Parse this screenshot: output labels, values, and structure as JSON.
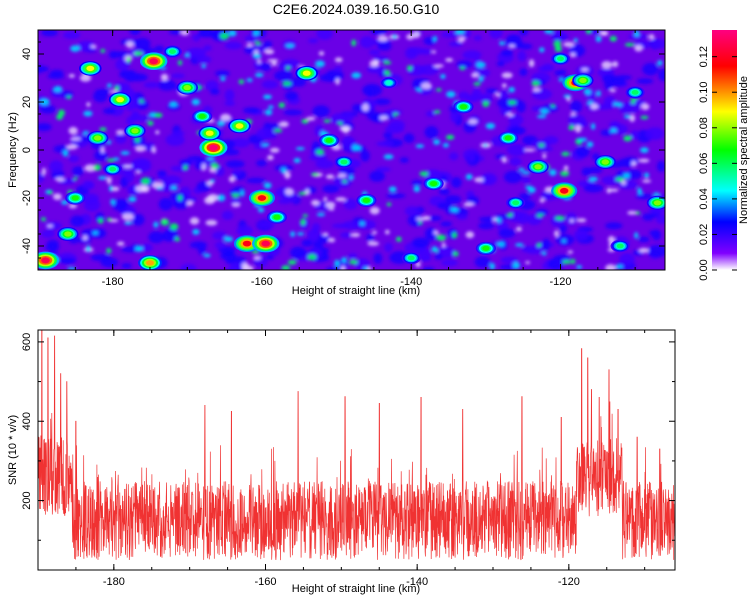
{
  "chart_data": [
    {
      "type": "heatmap",
      "title": "C2E6.2024.039.16.50.G10",
      "xlabel": "Height of straight line (km)",
      "ylabel": "Frequency (Hz)",
      "xlim": [
        -190,
        -106
      ],
      "ylim": [
        -50,
        50
      ],
      "xticks": [
        -180,
        -160,
        -140,
        -120
      ],
      "yticks": [
        -40,
        -20,
        0,
        20,
        40
      ],
      "colorbar": {
        "label": "Normalized spectral amplitude",
        "range": [
          0,
          0.135
        ],
        "ticks": [
          "0.00",
          "0.02",
          "0.04",
          "0.06",
          "0.08",
          "0.10",
          "0.12"
        ],
        "colors": [
          "#ffffff",
          "#8000ff",
          "#0000ff",
          "#00ffff",
          "#00ff00",
          "#ffff00",
          "#ff0000",
          "#ff0080"
        ]
      },
      "blobs": [
        {
          "x": -166.5,
          "y": 1,
          "v": 0.135
        },
        {
          "x": -174.5,
          "y": 37,
          "v": 0.13
        },
        {
          "x": -172,
          "y": 41,
          "v": 0.06
        },
        {
          "x": -177,
          "y": 8,
          "v": 0.08
        },
        {
          "x": -179,
          "y": 21,
          "v": 0.09
        },
        {
          "x": -183,
          "y": 34,
          "v": 0.09
        },
        {
          "x": -182,
          "y": 5,
          "v": 0.08
        },
        {
          "x": -170,
          "y": 26,
          "v": 0.08
        },
        {
          "x": -168,
          "y": 14,
          "v": 0.07
        },
        {
          "x": -167,
          "y": 7,
          "v": 0.09
        },
        {
          "x": -163,
          "y": 10,
          "v": 0.09
        },
        {
          "x": -154,
          "y": 32,
          "v": 0.09
        },
        {
          "x": -151,
          "y": 4,
          "v": 0.07
        },
        {
          "x": -160,
          "y": -20,
          "v": 0.12
        },
        {
          "x": -162,
          "y": -39,
          "v": 0.12
        },
        {
          "x": -159.5,
          "y": -39,
          "v": 0.13
        },
        {
          "x": -158,
          "y": -28,
          "v": 0.07
        },
        {
          "x": -175,
          "y": -47,
          "v": 0.1
        },
        {
          "x": -189,
          "y": -46,
          "v": 0.13
        },
        {
          "x": -186,
          "y": -35,
          "v": 0.08
        },
        {
          "x": -185,
          "y": -20,
          "v": 0.07
        },
        {
          "x": -180,
          "y": -8,
          "v": 0.06
        },
        {
          "x": -146,
          "y": -21,
          "v": 0.07
        },
        {
          "x": -140,
          "y": -45,
          "v": 0.06
        },
        {
          "x": -137,
          "y": -14,
          "v": 0.07
        },
        {
          "x": -133,
          "y": 18,
          "v": 0.07
        },
        {
          "x": -130,
          "y": -41,
          "v": 0.07
        },
        {
          "x": -127,
          "y": 5,
          "v": 0.07
        },
        {
          "x": -126,
          "y": -22,
          "v": 0.06
        },
        {
          "x": -123,
          "y": -7,
          "v": 0.08
        },
        {
          "x": -119.5,
          "y": -17,
          "v": 0.12
        },
        {
          "x": -118,
          "y": 28,
          "v": 0.12
        },
        {
          "x": -117,
          "y": 29,
          "v": 0.08
        },
        {
          "x": -114,
          "y": -5,
          "v": 0.08
        },
        {
          "x": -110,
          "y": 24,
          "v": 0.06
        },
        {
          "x": -107,
          "y": -22,
          "v": 0.08
        },
        {
          "x": -112,
          "y": -40,
          "v": 0.06
        },
        {
          "x": -120,
          "y": 38,
          "v": 0.06
        },
        {
          "x": -143,
          "y": 28,
          "v": 0.05
        },
        {
          "x": -149,
          "y": -5,
          "v": 0.06
        }
      ]
    },
    {
      "type": "line",
      "xlabel": "Height of straight line (km)",
      "ylabel": "SNR (10 * v/v)",
      "xlim": [
        -190,
        -106
      ],
      "ylim": [
        25,
        630
      ],
      "xticks": [
        -180,
        -160,
        -140,
        -120
      ],
      "yticks": [
        200,
        400,
        600
      ],
      "color": "#f03232",
      "samples": 2400,
      "baseline": 150,
      "peaks": [
        {
          "x": -189.5,
          "y": 630
        },
        {
          "x": -188.7,
          "y": 610
        },
        {
          "x": -187.8,
          "y": 615
        },
        {
          "x": -187,
          "y": 520
        },
        {
          "x": -186.2,
          "y": 500
        },
        {
          "x": -185,
          "y": 400
        },
        {
          "x": -168,
          "y": 440
        },
        {
          "x": -164.5,
          "y": 425
        },
        {
          "x": -155.7,
          "y": 475
        },
        {
          "x": -149.5,
          "y": 462
        },
        {
          "x": -145,
          "y": 445
        },
        {
          "x": -139.5,
          "y": 460
        },
        {
          "x": -134,
          "y": 430
        },
        {
          "x": -126.2,
          "y": 462
        },
        {
          "x": -121,
          "y": 410
        },
        {
          "x": -118.3,
          "y": 583
        },
        {
          "x": -117.5,
          "y": 560
        },
        {
          "x": -117,
          "y": 480
        },
        {
          "x": -116,
          "y": 460
        },
        {
          "x": -114.7,
          "y": 530
        },
        {
          "x": -113.5,
          "y": 430
        },
        {
          "x": -111,
          "y": 360
        },
        {
          "x": -108,
          "y": 330
        }
      ],
      "elevated_regions": [
        {
          "from": -190,
          "to": -185.5,
          "add": 110
        },
        {
          "from": -119,
          "to": -113,
          "add": 110
        }
      ]
    }
  ]
}
